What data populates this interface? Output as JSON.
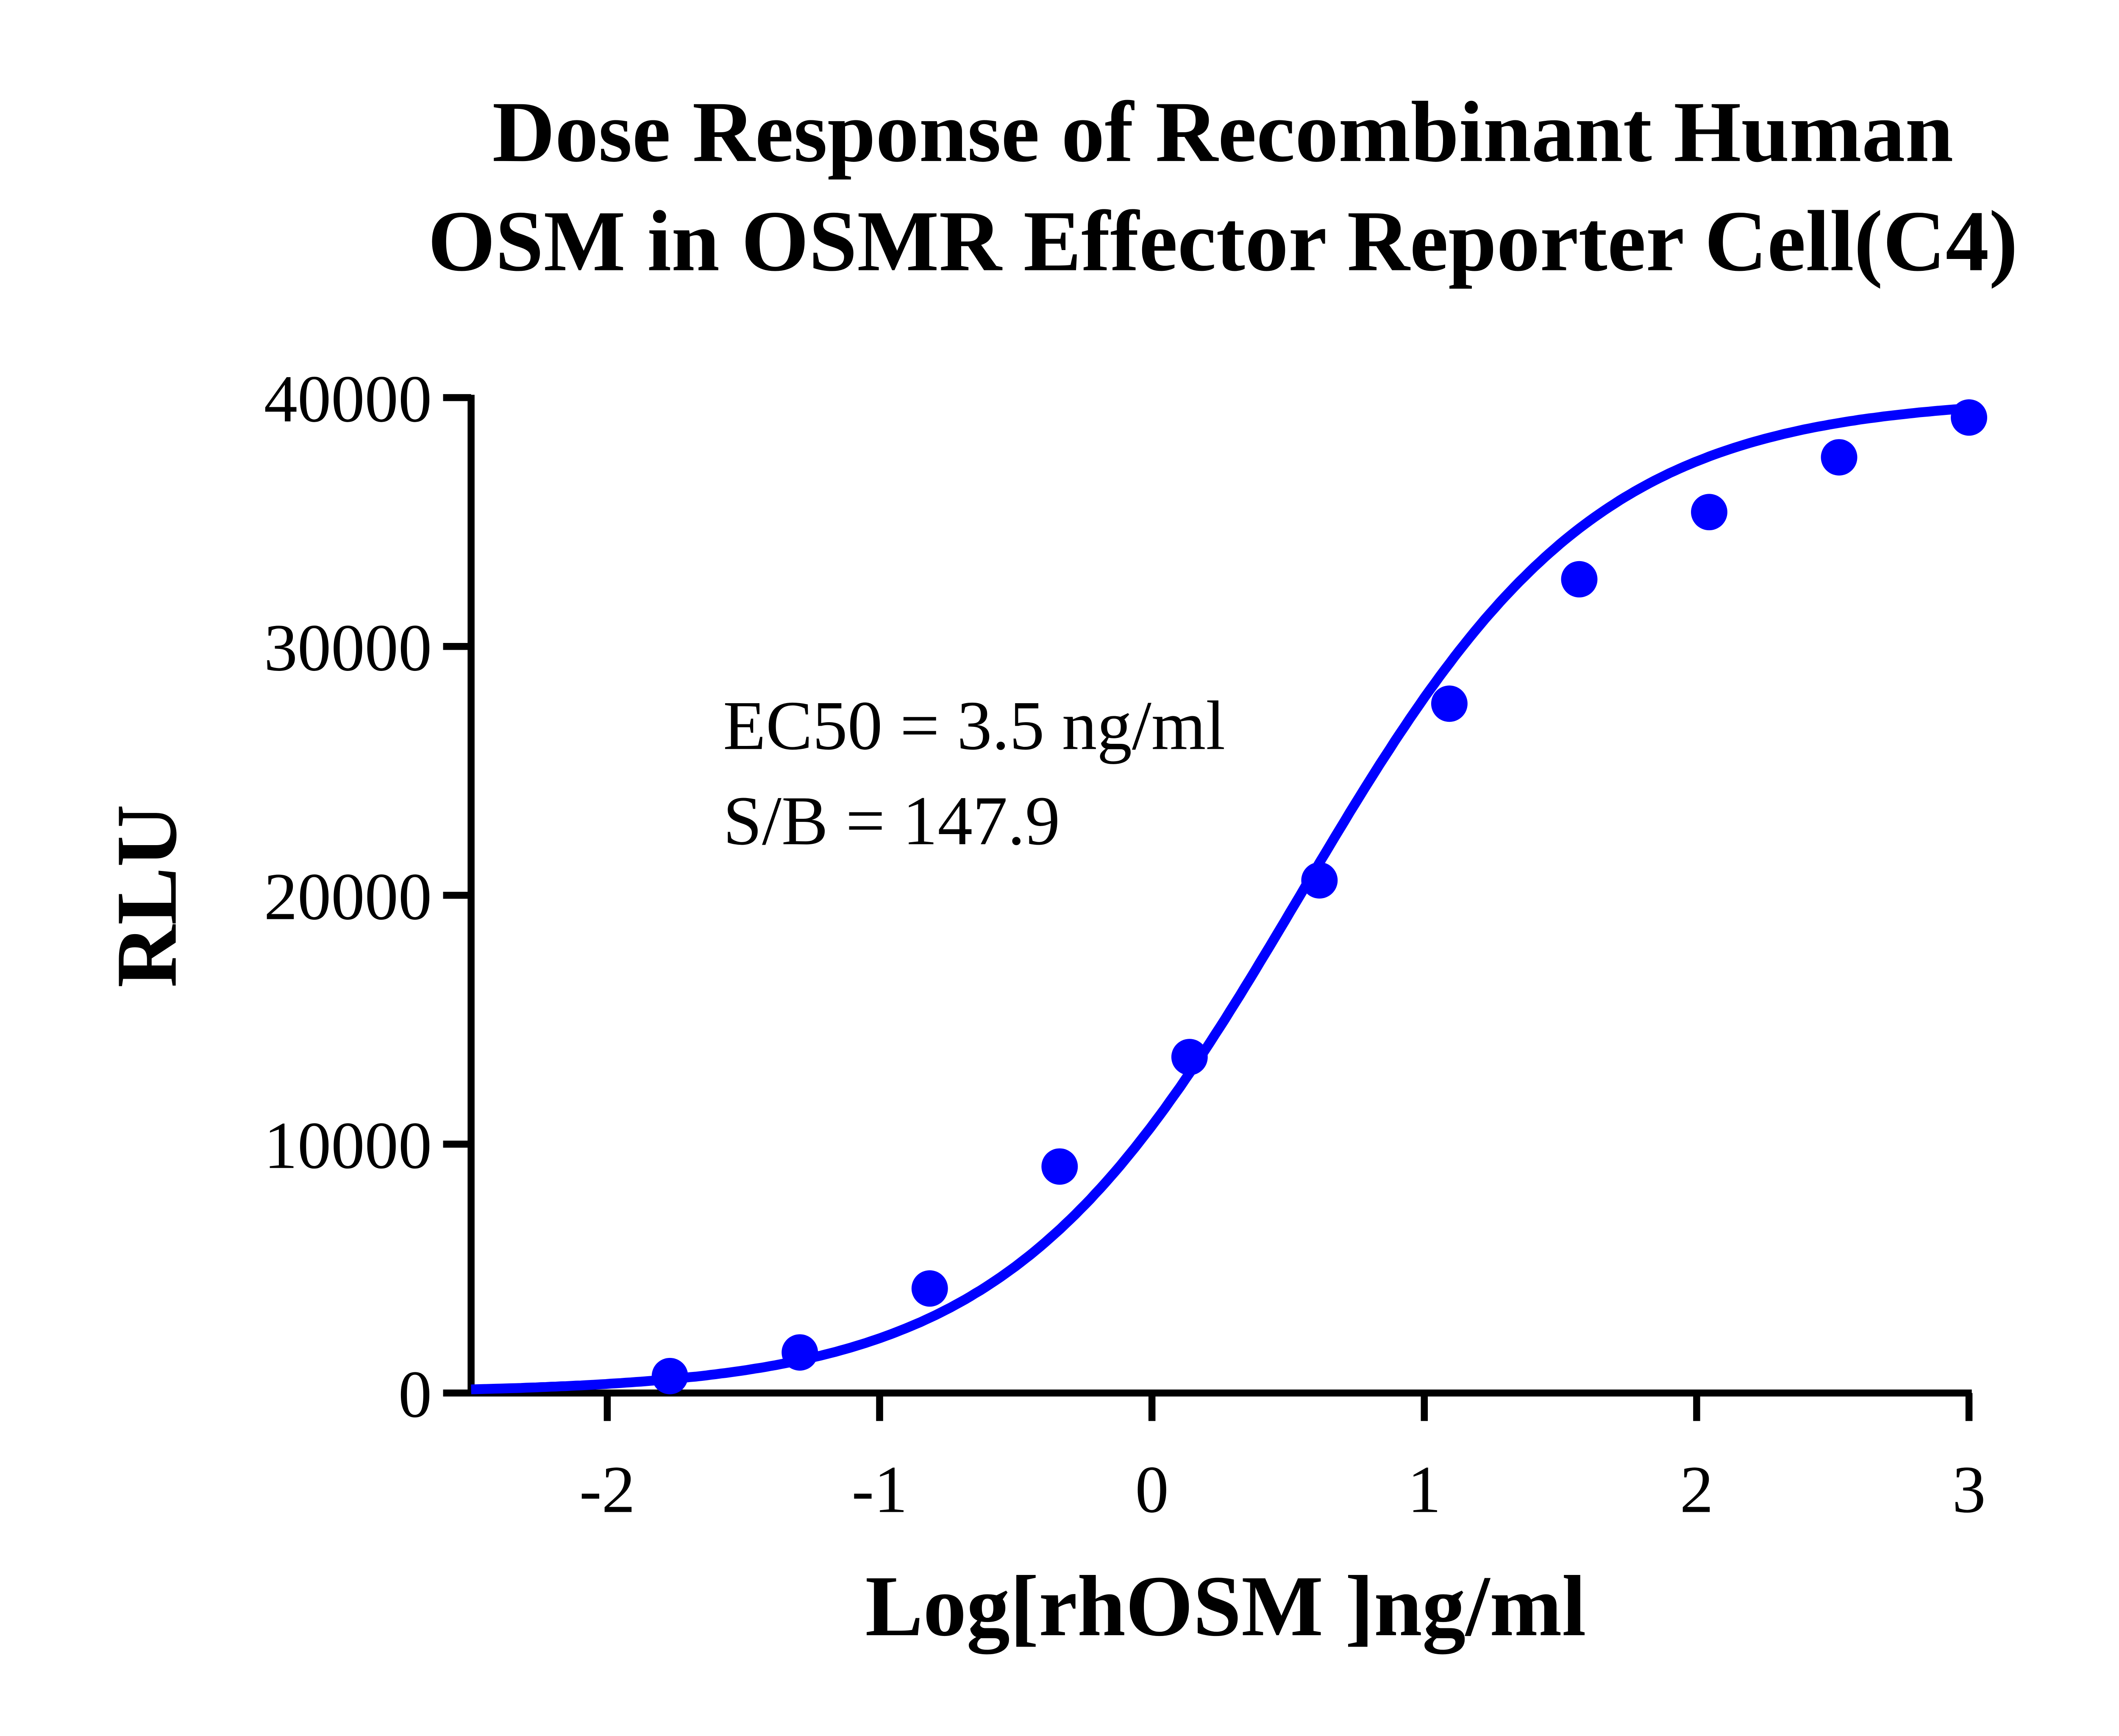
{
  "chart_data": {
    "type": "scatter",
    "title_lines": [
      "Dose Response of Recombinant Human",
      "OSM in OSMR Effector Reporter Cell(C4)"
    ],
    "xlabel": "Log[rhOSM ]ng/ml",
    "ylabel": "RLU",
    "xlim": [
      -2.5,
      3
    ],
    "ylim": [
      0,
      40000
    ],
    "x_ticks": [
      -2,
      -1,
      0,
      1,
      2,
      3
    ],
    "x_tick_labels": [
      "-2",
      "-1",
      "0",
      "1",
      "2",
      "3"
    ],
    "y_ticks": [
      0,
      10000,
      20000,
      30000,
      40000
    ],
    "y_tick_labels": [
      "0",
      "10000",
      "20000",
      "30000",
      "40000"
    ],
    "grid": false,
    "color": "#0000ff",
    "annotations": [
      "EC50 = 3.5 ng/ml",
      "S/B = 147.9"
    ],
    "points": {
      "x": [
        -1.77,
        -1.293,
        -0.816,
        -0.339,
        0.138,
        0.615,
        1.092,
        1.569,
        2.046,
        2.523,
        3.0
      ],
      "y": [
        680,
        1630,
        4200,
        9100,
        13500,
        20600,
        27700,
        32700,
        35400,
        37600,
        39200
      ]
    },
    "fit_curve": {
      "model": "4PL",
      "bottom": 0,
      "top": 40000,
      "log_ec50": 0.544,
      "hill_slope": 0.8
    }
  }
}
